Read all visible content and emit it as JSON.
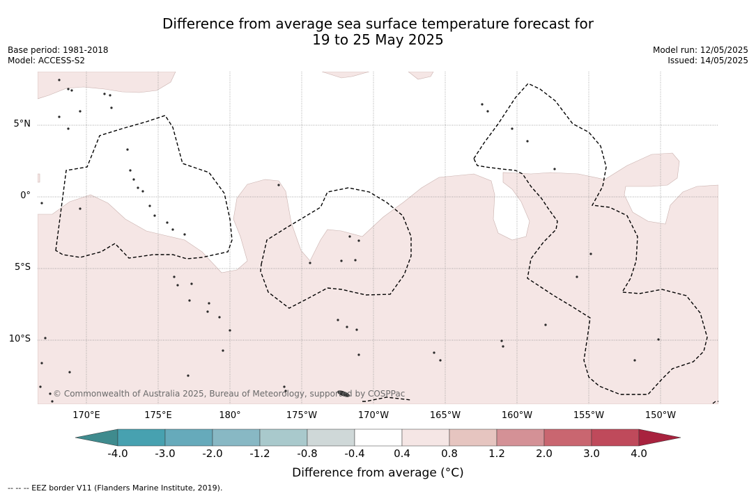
{
  "title": {
    "line1": "Difference from average sea surface temperature forecast for",
    "line2": "19 to 25 May 2025"
  },
  "meta_left": {
    "base_period": "Base period: 1981-2018",
    "model": "Model: ACCESS-S2"
  },
  "meta_right": {
    "model_run": "Model run: 12/05/2025",
    "issued": "Issued: 14/05/2025"
  },
  "lat_labels": [
    "5°N",
    "0°",
    "5°S",
    "10°S"
  ],
  "lon_labels": [
    "170°E",
    "175°E",
    "180°",
    "175°W",
    "170°W",
    "165°W",
    "160°W",
    "155°W",
    "150°W"
  ],
  "copyright": "© Commonwealth of Australia 2025, Bureau of Meteorology, supported by COSPPac",
  "colorbar": {
    "ticks": [
      "-4.0",
      "-3.0",
      "-2.0",
      "-1.2",
      "-0.8",
      "-0.4",
      "0.4",
      "0.8",
      "1.2",
      "2.0",
      "3.0",
      "4.0"
    ],
    "colors": [
      "#3f8b8e",
      "#47a1b0",
      "#66aabb",
      "#88b8c4",
      "#a9c9cc",
      "#cfd8d8",
      "#ffffff",
      "#f5e6e5",
      "#e6c5c0",
      "#d49196",
      "#c96670",
      "#bf4a5b",
      "#a8223e"
    ],
    "label": "Difference from average (°C)"
  },
  "footnote": "-- -- -- EEZ border V11 (Flanders Marine Institute, 2019).",
  "map_colors": {
    "band_04_08": "#f5e6e5",
    "band_08_12": "#e6c5c0",
    "land": "#333333",
    "grid": "#888888",
    "eez": "#000000"
  }
}
